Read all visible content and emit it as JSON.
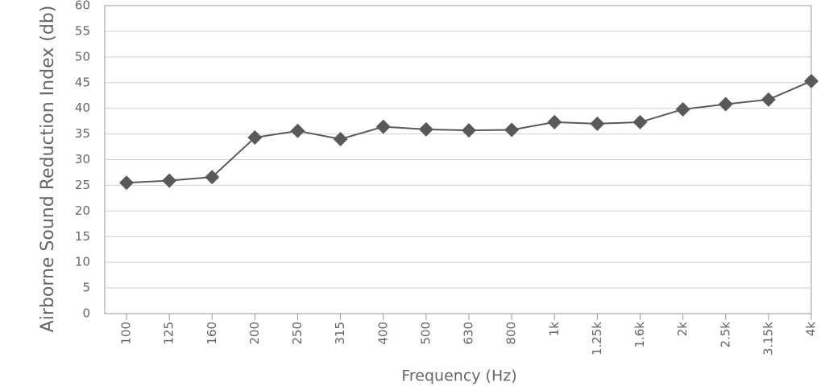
{
  "chart_data": {
    "type": "line",
    "y_label": "Airborne Sound Reduction Index (db)",
    "x_label": "Frequency (Hz)",
    "categories": [
      "100",
      "125",
      "160",
      "200",
      "250",
      "315",
      "400",
      "500",
      "630",
      "800",
      "1k",
      "1.25k",
      "1.6k",
      "2k",
      "2.5k",
      "3.15k",
      "4k"
    ],
    "series": [
      {
        "color": "#595959",
        "values": [
          25.5,
          25.9,
          26.6,
          34.3,
          35.6,
          34.0,
          36.4,
          35.9,
          35.7,
          35.8,
          37.3,
          37.0,
          37.3,
          39.8,
          40.8,
          41.7,
          45.3
        ]
      }
    ],
    "ylim": [
      0,
      60
    ],
    "yticks": [
      0,
      5,
      10,
      15,
      20,
      25,
      30,
      35,
      40,
      45,
      50,
      55,
      60
    ],
    "grid": true
  }
}
